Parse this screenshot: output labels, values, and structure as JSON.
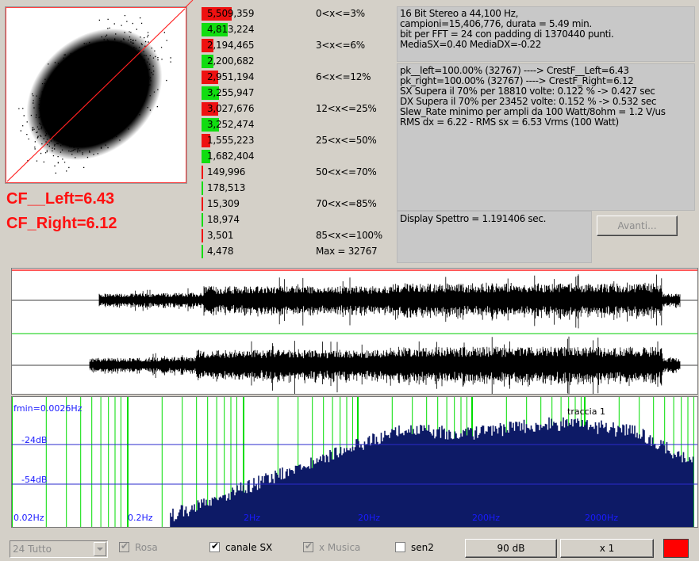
{
  "scatter": {
    "cf_left": "CF__Left=6.43",
    "cf_right": "CF_Right=6.12"
  },
  "histogram": {
    "rows": [
      {
        "value": "5,509,359",
        "range": "0<x<=3%",
        "color": "#ee1111",
        "fill": 1.0
      },
      {
        "value": "4,813,224",
        "range": "",
        "color": "#11dd11",
        "fill": 0.87
      },
      {
        "value": "2,194,465",
        "range": "3<x<=6%",
        "color": "#ee1111",
        "fill": 0.4
      },
      {
        "value": "2,200,682",
        "range": "",
        "color": "#11dd11",
        "fill": 0.4
      },
      {
        "value": "2,951,194",
        "range": "6<x<=12%",
        "color": "#ee1111",
        "fill": 0.54
      },
      {
        "value": "3,255,947",
        "range": "",
        "color": "#11dd11",
        "fill": 0.59
      },
      {
        "value": "3,027,676",
        "range": "12<x<=25%",
        "color": "#ee1111",
        "fill": 0.55
      },
      {
        "value": "3,252,474",
        "range": "",
        "color": "#11dd11",
        "fill": 0.59
      },
      {
        "value": "1,555,223",
        "range": "25<x<=50%",
        "color": "#ee1111",
        "fill": 0.28
      },
      {
        "value": "1,682,404",
        "range": "",
        "color": "#11dd11",
        "fill": 0.3
      },
      {
        "value": "149,996",
        "range": "50<x<=70%",
        "color": "#ee1111",
        "fill": 0.03
      },
      {
        "value": "178,513",
        "range": "",
        "color": "#11dd11",
        "fill": 0.03
      },
      {
        "value": "15,309",
        "range": "70<x<=85%",
        "color": "#ee1111",
        "fill": 0.003
      },
      {
        "value": "18,974",
        "range": "",
        "color": "#11dd11",
        "fill": 0.003
      },
      {
        "value": "3,501",
        "range": "85<x<=100%",
        "color": "#ee1111",
        "fill": 0.001
      },
      {
        "value": "4,478",
        "range": "Max = 32767",
        "color": "#11dd11",
        "fill": 0.001
      }
    ]
  },
  "info": {
    "header_lines": [
      "16 Bit Stereo a 44,100 Hz,",
      "campioni=15,406,776, durata = 5.49 min.",
      "bit per FFT = 24 con padding di 1370440 punti.",
      "MediaSX=0.40  MediaDX=-0.22"
    ],
    "detail_lines": [
      "pk__left=100.00% (32767) ----> CrestF__Left=6.43",
      "pk_right=100.00% (32767) ----> CrestF_Right=6.12",
      "SX Supera il 70% per 18810 volte: 0.122 % -> 0.427 sec",
      "DX Supera il 70% per 23452 volte: 0.152 % -> 0.532 sec",
      "Slew_Rate minimo per ampli da 100 Watt/8ohm = 1.2 V/us",
      "RMS dx = 6.22 - RMS sx = 6.53 Vrms (100 Watt)"
    ],
    "display_spettro": "Display Spettro = 1.191406 sec.",
    "avanti_label": "Avanti..."
  },
  "spectrum": {
    "fmin_label": "fmin=0.0026Hz",
    "track_label": "traccia 1",
    "db_labels": [
      "-24dB",
      "-54dB"
    ],
    "freq_labels": [
      "0.02Hz",
      "0.2Hz",
      "2Hz",
      "20Hz",
      "200Hz",
      "2000Hz"
    ]
  },
  "controls": {
    "select_value": "24 Tutto",
    "rosa_label": "Rosa",
    "canale_sx_label": "canale SX",
    "x_musica_label": "x Musica",
    "sen2_label": "sen2",
    "db_button_label": "90 dB",
    "zoom_button_label": "x 1",
    "color_swatch": "#ff0000"
  },
  "colors": {
    "wave": "#000000",
    "spectrum_fill": "#0d1a66",
    "grid_green": "#00dd00",
    "db_line": "#2a2acc",
    "label_blue": "#1a1aff",
    "accent_red": "#ff1010"
  }
}
